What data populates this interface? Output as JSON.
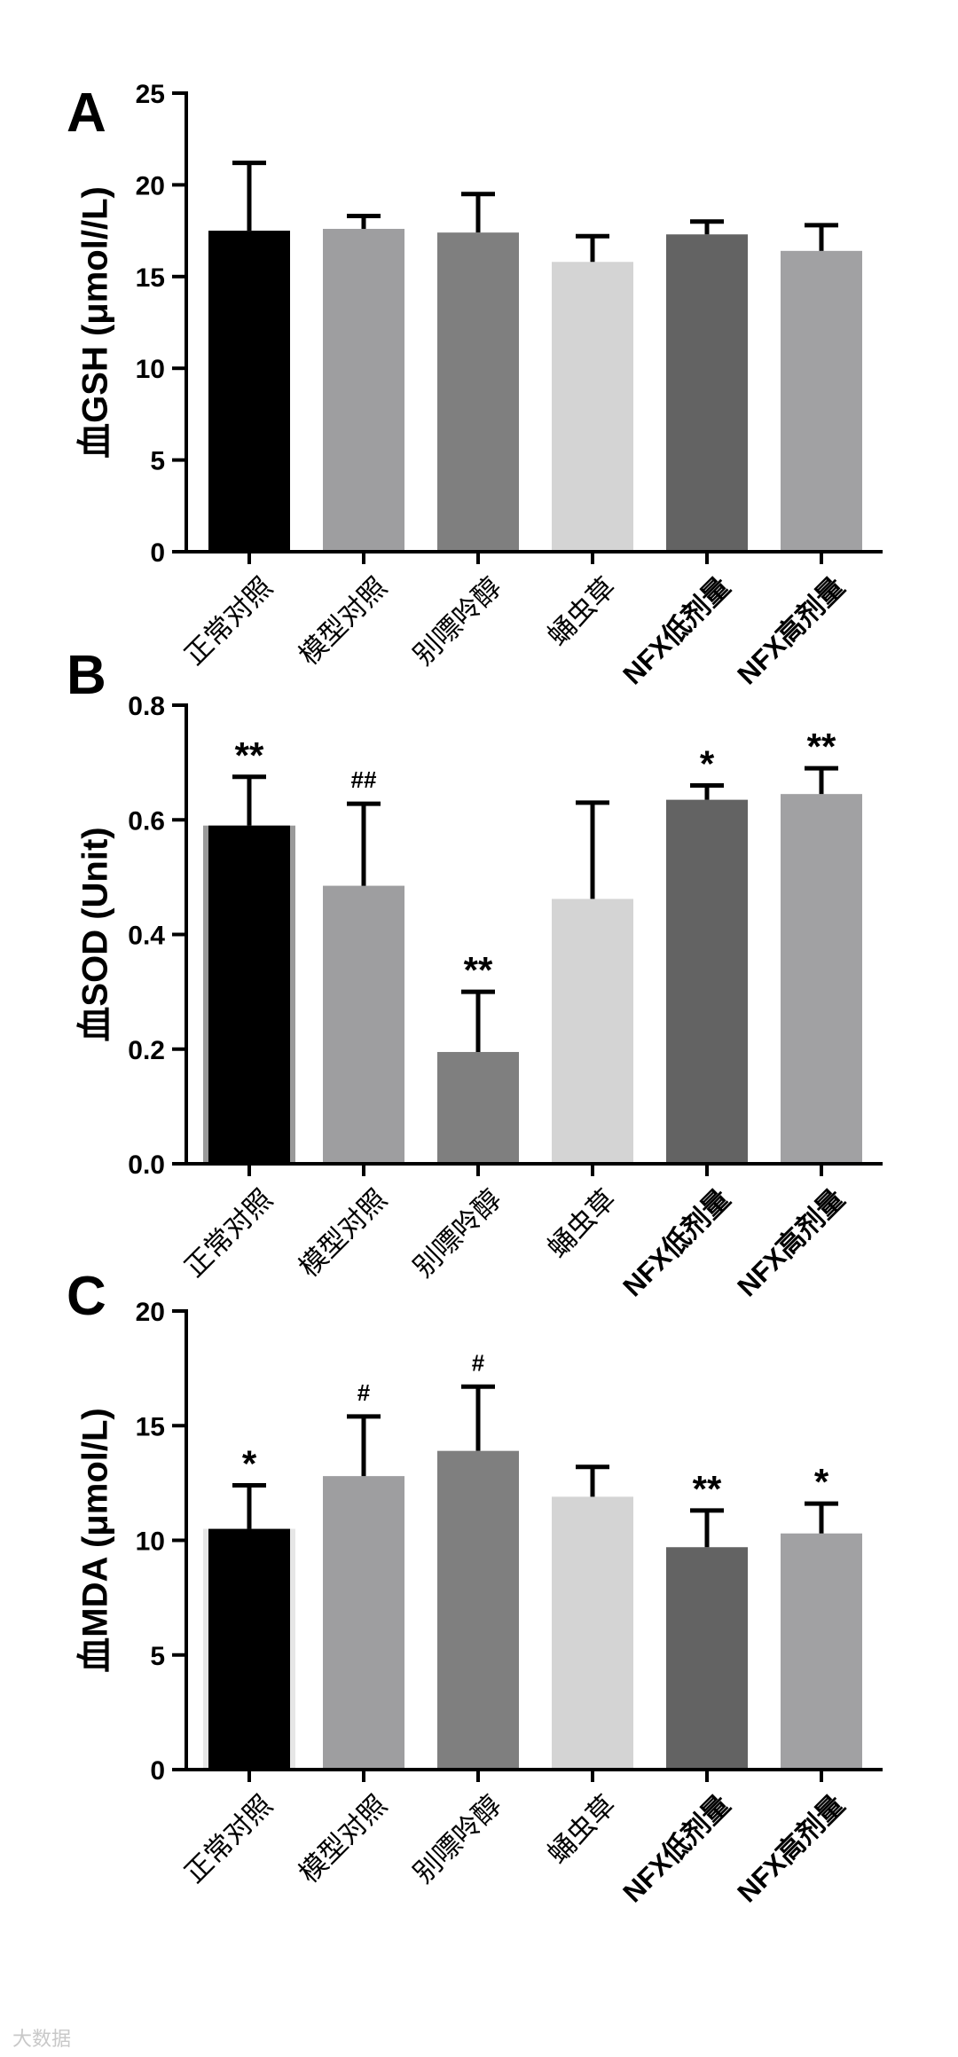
{
  "colors": {
    "bars": [
      "#000000",
      "#9e9ea0",
      "#7f7f7f",
      "#d4d4d4",
      "#636363",
      "#a1a1a3"
    ],
    "axis": "#000000",
    "error": "#000000"
  },
  "watermark": "大数据",
  "chart_data": [
    {
      "panel": "A",
      "type": "bar",
      "ylabel": "血GSH (μmol//L)",
      "categories": [
        "正常对照",
        "模型对照",
        "别嘌呤醇",
        "蛹虫草",
        "NFX低剂量",
        "NFX高剂量"
      ],
      "bold_categories": [
        false,
        false,
        false,
        false,
        true,
        true
      ],
      "values": [
        17.5,
        17.6,
        17.4,
        15.8,
        17.3,
        16.4
      ],
      "errors": [
        3.7,
        0.7,
        2.1,
        1.4,
        0.7,
        1.4
      ],
      "annotations": [
        "",
        "",
        "",
        "",
        "",
        ""
      ],
      "ylim": [
        0,
        25
      ],
      "yticks": [
        0,
        5,
        10,
        15,
        20,
        25
      ],
      "ytick_labels": [
        "0",
        "5",
        "10",
        "15",
        "20",
        "25"
      ]
    },
    {
      "panel": "B",
      "type": "bar",
      "ylabel": "血SOD (Unit)",
      "categories": [
        "正常对照",
        "模型对照",
        "别嘌呤醇",
        "蛹虫草",
        "NFX低剂量",
        "NFX高剂量"
      ],
      "bold_categories": [
        false,
        false,
        false,
        false,
        true,
        true
      ],
      "values": [
        0.59,
        0.485,
        0.195,
        0.462,
        0.635,
        0.645
      ],
      "errors": [
        0.085,
        0.143,
        0.105,
        0.168,
        0.025,
        0.045
      ],
      "annotations": [
        "**",
        "##",
        "**",
        "",
        "*",
        "**"
      ],
      "ylim": [
        0,
        0.8
      ],
      "yticks": [
        0,
        0.2,
        0.4,
        0.6,
        0.8
      ],
      "ytick_labels": [
        "0.0",
        "0.2",
        "0.4",
        "0.6",
        "0.8"
      ]
    },
    {
      "panel": "C",
      "type": "bar",
      "ylabel": "血MDA (μmol/L)",
      "categories": [
        "正常对照",
        "模型对照",
        "别嘌呤醇",
        "蛹虫草",
        "NFX低剂量",
        "NFX高剂量"
      ],
      "bold_categories": [
        false,
        false,
        false,
        false,
        true,
        true
      ],
      "values": [
        10.5,
        12.8,
        13.9,
        11.9,
        9.7,
        10.3
      ],
      "errors": [
        1.9,
        2.6,
        2.8,
        1.3,
        1.6,
        1.3
      ],
      "annotations": [
        "*",
        "#",
        "#",
        "",
        "**",
        "*"
      ],
      "ylim": [
        0,
        20
      ],
      "yticks": [
        0,
        5,
        10,
        15,
        20
      ],
      "ytick_labels": [
        "0",
        "5",
        "10",
        "15",
        "20"
      ]
    }
  ]
}
